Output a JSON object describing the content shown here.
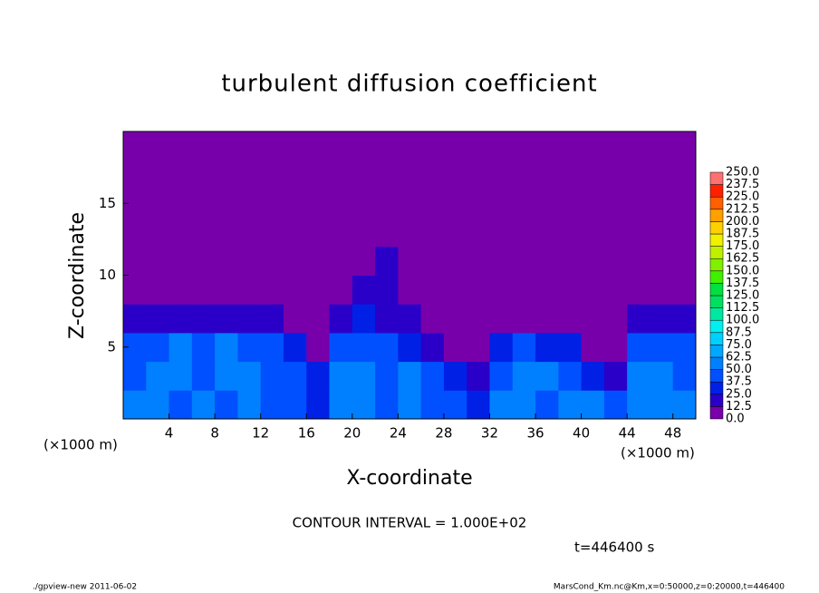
{
  "chart_data": {
    "type": "heatmap",
    "title": "turbulent diffusion coefficient",
    "xlabel": "X-coordinate",
    "ylabel": "Z-coordinate",
    "x_unit_labels": [
      "(×1000 m)",
      "(×1000 m)"
    ],
    "annotations": [
      "CONTOUR INTERVAL = 1.000E+02",
      "t=446400 s"
    ],
    "footer_left": "./gpview-new  2011-06-02",
    "footer_right": "MarsCond_Km.nc@Km,x=0:50000,z=0:20000,t=446400",
    "xlim": [
      0,
      50
    ],
    "ylim": [
      0,
      20
    ],
    "xticks": [
      4,
      8,
      12,
      16,
      20,
      24,
      28,
      32,
      36,
      40,
      44,
      48
    ],
    "yticks": [
      5,
      10,
      15
    ],
    "x": [
      1,
      3,
      5,
      7,
      9,
      11,
      13,
      15,
      17,
      19,
      21,
      23,
      25,
      27,
      29,
      31,
      33,
      35,
      37,
      39,
      41,
      43,
      45,
      47,
      49
    ],
    "y": [
      1,
      3,
      5,
      7,
      9,
      11,
      13,
      15,
      17,
      19
    ],
    "z": [
      [
        50,
        60,
        45,
        50,
        45,
        55,
        40,
        45,
        30,
        50,
        55,
        45,
        60,
        45,
        40,
        30,
        50,
        55,
        45,
        50,
        55,
        45,
        60,
        50,
        55
      ],
      [
        45,
        55,
        50,
        45,
        50,
        60,
        45,
        40,
        25,
        50,
        60,
        45,
        55,
        40,
        30,
        20,
        45,
        60,
        50,
        45,
        30,
        20,
        55,
        50,
        45
      ],
      [
        40,
        45,
        50,
        45,
        50,
        40,
        45,
        30,
        10,
        40,
        45,
        40,
        30,
        20,
        5,
        0,
        35,
        40,
        35,
        30,
        10,
        0,
        40,
        45,
        40
      ],
      [
        15,
        15,
        15,
        15,
        15,
        15,
        15,
        10,
        0,
        15,
        25,
        20,
        15,
        5,
        0,
        0,
        0,
        0,
        0,
        0,
        0,
        0,
        15,
        15,
        20
      ],
      [
        5,
        0,
        5,
        0,
        0,
        0,
        0,
        0,
        0,
        5,
        15,
        20,
        10,
        0,
        0,
        0,
        0,
        0,
        0,
        0,
        0,
        0,
        5,
        0,
        5
      ],
      [
        0,
        5,
        0,
        0,
        0,
        0,
        5,
        0,
        0,
        0,
        5,
        15,
        5,
        5,
        0,
        0,
        5,
        0,
        0,
        0,
        0,
        5,
        0,
        5,
        0
      ],
      [
        0,
        0,
        0,
        0,
        0,
        0,
        0,
        0,
        0,
        5,
        0,
        0,
        0,
        0,
        0,
        5,
        0,
        0,
        0,
        0,
        0,
        0,
        0,
        5,
        0
      ],
      [
        0,
        0,
        0,
        0,
        0,
        0,
        0,
        0,
        0,
        0,
        0,
        0,
        0,
        0,
        0,
        0,
        0,
        0,
        0,
        0,
        0,
        0,
        0,
        0,
        0
      ],
      [
        0,
        0,
        0,
        0,
        0,
        0,
        0,
        0,
        0,
        0,
        0,
        0,
        0,
        0,
        0,
        0,
        0,
        0,
        0,
        0,
        0,
        0,
        0,
        0,
        0
      ],
      [
        0,
        0,
        0,
        0,
        0,
        0,
        0,
        0,
        0,
        0,
        0,
        0,
        0,
        0,
        0,
        0,
        0,
        0,
        0,
        0,
        0,
        0,
        0,
        0,
        0
      ]
    ],
    "colorbar": {
      "ticks": [
        {
          "value": 0,
          "label": "0.0"
        },
        {
          "value": 12.5,
          "label": "12.5"
        },
        {
          "value": 25,
          "label": "25.0"
        },
        {
          "value": 37.5,
          "label": "37.5"
        },
        {
          "value": 50,
          "label": "50.0"
        },
        {
          "value": 62.5,
          "label": "62.5"
        },
        {
          "value": 75,
          "label": "75.0"
        },
        {
          "value": 87.5,
          "label": "87.5"
        },
        {
          "value": 100,
          "label": "100.0"
        },
        {
          "value": 112.5,
          "label": "112.5"
        },
        {
          "value": 125,
          "label": "125.0"
        },
        {
          "value": 137.5,
          "label": "137.5"
        },
        {
          "value": 150,
          "label": "150.0"
        },
        {
          "value": 162.5,
          "label": "162.5"
        },
        {
          "value": 175,
          "label": "175.0"
        },
        {
          "value": 187.5,
          "label": "187.5"
        },
        {
          "value": 200,
          "label": "200.0"
        },
        {
          "value": 212.5,
          "label": "212.5"
        },
        {
          "value": 225,
          "label": "225.0"
        },
        {
          "value": 237.5,
          "label": "237.5"
        },
        {
          "value": 250,
          "label": "250.0"
        }
      ],
      "colors": [
        "#7800aa",
        "#2a00c8",
        "#0020e6",
        "#0050ff",
        "#0080ff",
        "#00a8ff",
        "#00d0ff",
        "#00f0f0",
        "#00e8a0",
        "#00e060",
        "#00e040",
        "#40f000",
        "#80f000",
        "#c0f000",
        "#f0f000",
        "#ffd000",
        "#ffa000",
        "#ff6000",
        "#ff2000",
        "#ff7070"
      ]
    }
  }
}
